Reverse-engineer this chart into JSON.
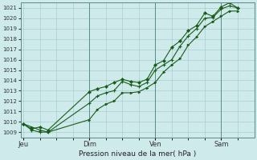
{
  "background_color": "#ceeaea",
  "grid_color": "#a8cece",
  "line_color": "#1a5c1a",
  "marker_color": "#1a5c1a",
  "xlabel": "Pression niveau de la mer( hPa )",
  "ylim": [
    1008.5,
    1021.5
  ],
  "yticks": [
    1009,
    1010,
    1011,
    1012,
    1013,
    1014,
    1015,
    1016,
    1017,
    1018,
    1019,
    1020,
    1021
  ],
  "xtick_labels": [
    "Jeu",
    "Dim",
    "Ven",
    "Sam"
  ],
  "xtick_positions": [
    0,
    24,
    48,
    72
  ],
  "xlim": [
    -1,
    84
  ],
  "vlines_x": [
    24,
    48,
    72
  ],
  "series1_x": [
    0,
    3,
    6,
    9,
    24,
    27,
    30,
    33,
    36,
    39,
    42,
    45,
    48,
    51,
    54,
    57,
    60,
    63,
    66,
    69,
    72,
    75,
    78
  ],
  "series1_y": [
    1009.8,
    1009.3,
    1009.5,
    1009.2,
    1012.9,
    1013.2,
    1013.4,
    1013.8,
    1014.1,
    1013.9,
    1013.8,
    1014.1,
    1015.5,
    1015.9,
    1017.2,
    1017.8,
    1018.8,
    1019.3,
    1020.5,
    1020.2,
    1021.1,
    1021.5,
    1021.0
  ],
  "series2_x": [
    0,
    3,
    6,
    9,
    24,
    27,
    30,
    33,
    36,
    39,
    42,
    45,
    48,
    51,
    54,
    57,
    60,
    63,
    66,
    69,
    72,
    75,
    78
  ],
  "series2_y": [
    1009.8,
    1009.2,
    1009.0,
    1009.0,
    1011.8,
    1012.5,
    1012.8,
    1013.0,
    1013.9,
    1013.6,
    1013.4,
    1013.8,
    1015.0,
    1015.5,
    1016.0,
    1017.3,
    1018.3,
    1019.0,
    1020.0,
    1020.1,
    1020.9,
    1021.2,
    1021.0
  ],
  "series3_x": [
    0,
    3,
    6,
    9,
    24,
    27,
    30,
    33,
    36,
    39,
    42,
    45,
    48,
    51,
    54,
    57,
    60,
    63,
    66,
    69,
    72,
    75,
    78
  ],
  "series3_y": [
    1009.8,
    1009.5,
    1009.2,
    1009.0,
    1010.2,
    1011.2,
    1011.7,
    1012.0,
    1012.8,
    1012.8,
    1012.9,
    1013.3,
    1013.8,
    1014.8,
    1015.5,
    1016.1,
    1017.4,
    1018.2,
    1019.2,
    1019.7,
    1020.2,
    1020.7,
    1020.7
  ],
  "figsize": [
    3.2,
    2.0
  ],
  "dpi": 100
}
